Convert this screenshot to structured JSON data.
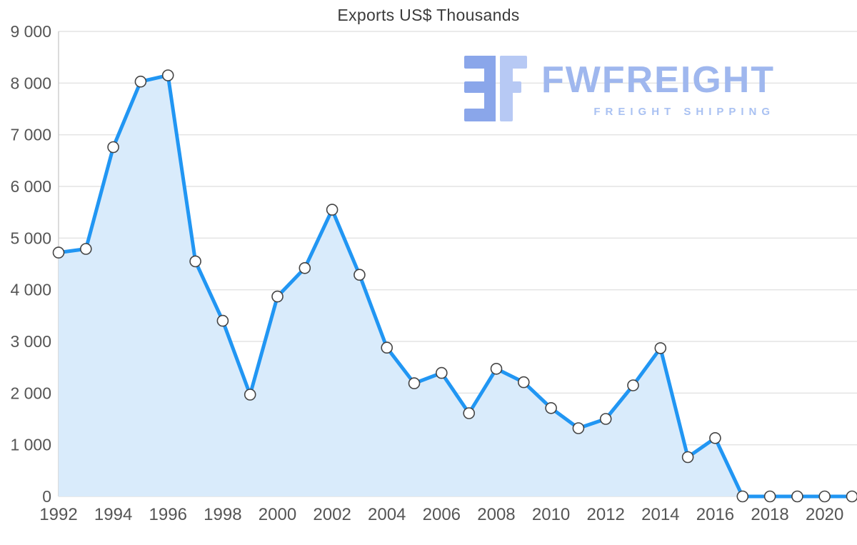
{
  "title": "Exports US$ Thousands",
  "logo": {
    "brand": "FWFREIGHT",
    "tagline": "FREIGHT SHIPPING",
    "glyph": "fw-monogram-icon",
    "glyph_color_dark": "#8aa6ea",
    "glyph_color_light": "#b7c9f4"
  },
  "colors": {
    "line": "#2196f3",
    "area": "#d9ebfb",
    "marker_fill": "#ffffff",
    "marker_stroke": "#444444",
    "grid": "#e3e3e3",
    "axis": "#cccccc",
    "tick_text": "#555555",
    "title_text": "#3b3b3b"
  },
  "chart_data": {
    "type": "area",
    "title": "Exports US$ Thousands",
    "xlabel": "",
    "ylabel": "",
    "x": [
      1992,
      1993,
      1994,
      1995,
      1996,
      1997,
      1998,
      1999,
      2000,
      2001,
      2002,
      2003,
      2004,
      2005,
      2006,
      2007,
      2008,
      2009,
      2010,
      2011,
      2012,
      2013,
      2014,
      2015,
      2016,
      2017,
      2018,
      2019,
      2020,
      2021
    ],
    "values": [
      4720,
      4790,
      6760,
      8030,
      8150,
      4550,
      3400,
      1970,
      3870,
      4420,
      5550,
      4290,
      2880,
      2190,
      2390,
      1610,
      2470,
      2210,
      1710,
      1320,
      1500,
      2150,
      2870,
      760,
      1130,
      0,
      0,
      0,
      0,
      0
    ],
    "ylim": [
      0,
      9000
    ],
    "ytick_step": 1000,
    "xticks": [
      1992,
      1994,
      1996,
      1998,
      2000,
      2002,
      2004,
      2006,
      2008,
      2010,
      2012,
      2014,
      2016,
      2018,
      2020
    ],
    "grid": "horizontal",
    "legend": "none",
    "markers": "circle"
  }
}
